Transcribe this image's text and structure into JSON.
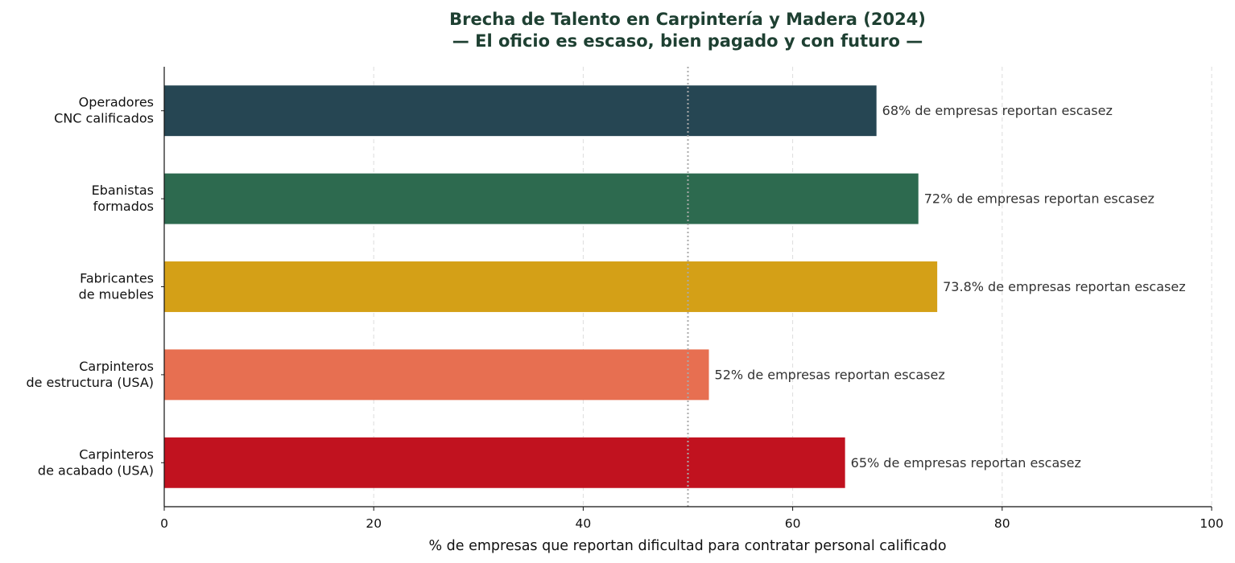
{
  "chart_data": {
    "type": "bar",
    "orientation": "horizontal",
    "title_lines": [
      "Brecha de Talento en Carpintería y Madera (2024)",
      "— El oficio es escaso, bien pagado y con futuro —"
    ],
    "xlabel": "% de empresas que reportan dificultad para contratar personal calificado",
    "ylabel": "",
    "xlim": [
      0,
      100
    ],
    "xticks": [
      0,
      20,
      40,
      60,
      80,
      100
    ],
    "grid": "vertical dashed",
    "reference_line": 50,
    "categories": [
      [
        "Operadores",
        "CNC calificados"
      ],
      [
        "Ebanistas",
        "formados"
      ],
      [
        "Fabricantes",
        "de muebles"
      ],
      [
        "Carpinteros",
        "de estructura (USA)"
      ],
      [
        "Carpinteros",
        "de acabado (USA)"
      ]
    ],
    "values": [
      68,
      72,
      73.8,
      52,
      65
    ],
    "data_labels": [
      "68% de empresas reportan escasez",
      "72% de empresas reportan escasez",
      "73.8% de empresas reportan escasez",
      "52% de empresas reportan escasez",
      "65% de empresas reportan escasez"
    ],
    "colors": [
      "#264653",
      "#2d6a4f",
      "#d4a017",
      "#e76f51",
      "#c1121f"
    ]
  }
}
